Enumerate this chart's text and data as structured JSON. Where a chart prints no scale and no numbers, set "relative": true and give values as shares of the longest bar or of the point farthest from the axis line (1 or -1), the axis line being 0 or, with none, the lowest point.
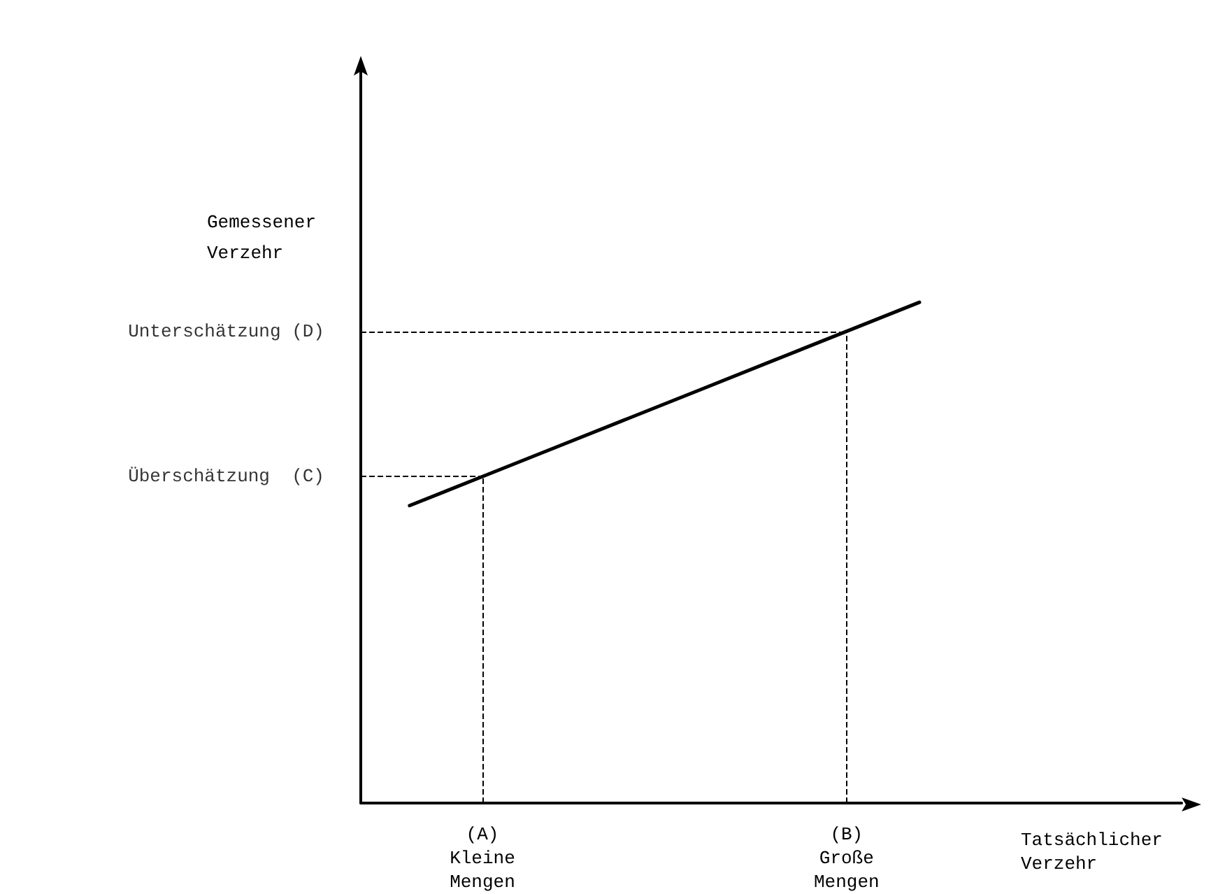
{
  "chart_data": {
    "type": "line",
    "relative": true,
    "xlabel": "Tatsächlicher\nVerzehr",
    "ylabel": "Gemessener\nVerzehr",
    "categories": [
      null,
      "(A)\nKleine\nMengen",
      null,
      null,
      null,
      null,
      "(B)\nGroße\nMengen",
      null
    ],
    "series": [
      {
        "color": "#000000",
        "values": [
          0.594,
          0.652,
          0.71,
          0.768,
          0.826,
          0.884,
          0.942,
          1
        ]
      }
    ],
    "ref_lines": [
      {
        "axis": "y",
        "value": 0.652,
        "label": "Überschätzung  (C)",
        "line_style": "dashed"
      },
      {
        "axis": "y",
        "value": 0.942,
        "label": "Unterschätzung (D)",
        "line_style": "dashed"
      },
      {
        "axis": "x",
        "value": "(A)\nKleine\nMengen",
        "line_style": "dashed"
      },
      {
        "axis": "x",
        "value": "(B)\nGroße\nMengen",
        "line_style": "dashed"
      }
    ],
    "grid": false,
    "marker": "none",
    "line_style": "solid"
  }
}
